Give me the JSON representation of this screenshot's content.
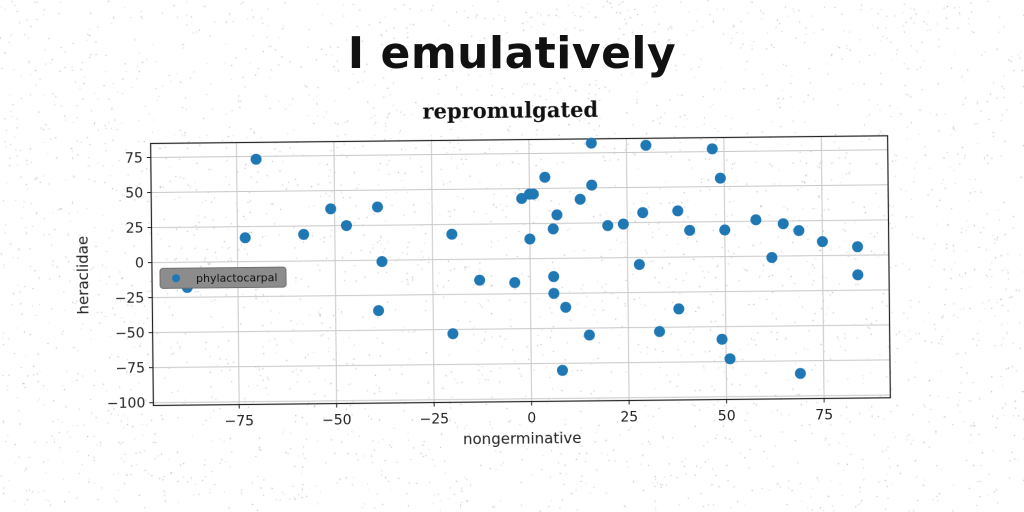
{
  "header": {
    "title": "I emulatively"
  },
  "chart_data": {
    "type": "scatter",
    "title": "repromulgated",
    "xlabel": "nongerminative",
    "ylabel": "heraclidae",
    "xlim": [
      -97,
      92
    ],
    "ylim": [
      -102,
      85
    ],
    "xticks": [
      -75,
      -50,
      -25,
      0,
      25,
      50,
      75
    ],
    "yticks": [
      75,
      50,
      25,
      0,
      -25,
      -50,
      -75,
      -100
    ],
    "xtick_labels": [
      "−75",
      "−50",
      "−25",
      "0",
      "25",
      "50",
      "75"
    ],
    "ytick_labels": [
      "75",
      "50",
      "25",
      "0",
      "−25",
      "−50",
      "−75",
      "−100"
    ],
    "grid": true,
    "legend_position": "center-left",
    "series": [
      {
        "name": "phylactocarpal",
        "color": "#1f77b4",
        "points": [
          {
            "x": -70,
            "y": 73
          },
          {
            "x": -73,
            "y": 17
          },
          {
            "x": -58,
            "y": 19
          },
          {
            "x": -51,
            "y": 37
          },
          {
            "x": -47,
            "y": 25
          },
          {
            "x": -39,
            "y": 38
          },
          {
            "x": -38,
            "y": -1
          },
          {
            "x": -39,
            "y": -36
          },
          {
            "x": -88,
            "y": -18
          },
          {
            "x": -20,
            "y": 18
          },
          {
            "x": -13,
            "y": -15
          },
          {
            "x": -20,
            "y": -53
          },
          {
            "x": -4,
            "y": -17
          },
          {
            "x": -2,
            "y": 43
          },
          {
            "x": 0,
            "y": 46
          },
          {
            "x": 1,
            "y": 46
          },
          {
            "x": 0,
            "y": 14
          },
          {
            "x": 4,
            "y": 58
          },
          {
            "x": 6,
            "y": 21
          },
          {
            "x": 7,
            "y": 31
          },
          {
            "x": 6,
            "y": -13
          },
          {
            "x": 6,
            "y": -25
          },
          {
            "x": 9,
            "y": -35
          },
          {
            "x": 8,
            "y": -80
          },
          {
            "x": 13,
            "y": 42
          },
          {
            "x": 16,
            "y": 52
          },
          {
            "x": 16,
            "y": 82
          },
          {
            "x": 20,
            "y": 23
          },
          {
            "x": 24,
            "y": 24
          },
          {
            "x": 29,
            "y": 32
          },
          {
            "x": 28,
            "y": -5
          },
          {
            "x": 30,
            "y": 80
          },
          {
            "x": 33,
            "y": -53
          },
          {
            "x": 15,
            "y": -55
          },
          {
            "x": 38,
            "y": 33
          },
          {
            "x": 41,
            "y": 19
          },
          {
            "x": 38,
            "y": -37
          },
          {
            "x": 47,
            "y": 77
          },
          {
            "x": 49,
            "y": 56
          },
          {
            "x": 50,
            "y": 19
          },
          {
            "x": 49,
            "y": -59
          },
          {
            "x": 51,
            "y": -73
          },
          {
            "x": 58,
            "y": 26
          },
          {
            "x": 62,
            "y": -1
          },
          {
            "x": 65,
            "y": 23
          },
          {
            "x": 69,
            "y": 18
          },
          {
            "x": 69,
            "y": -84
          },
          {
            "x": 75,
            "y": 10
          },
          {
            "x": 84,
            "y": 6
          },
          {
            "x": 84,
            "y": -14
          }
        ]
      }
    ]
  }
}
